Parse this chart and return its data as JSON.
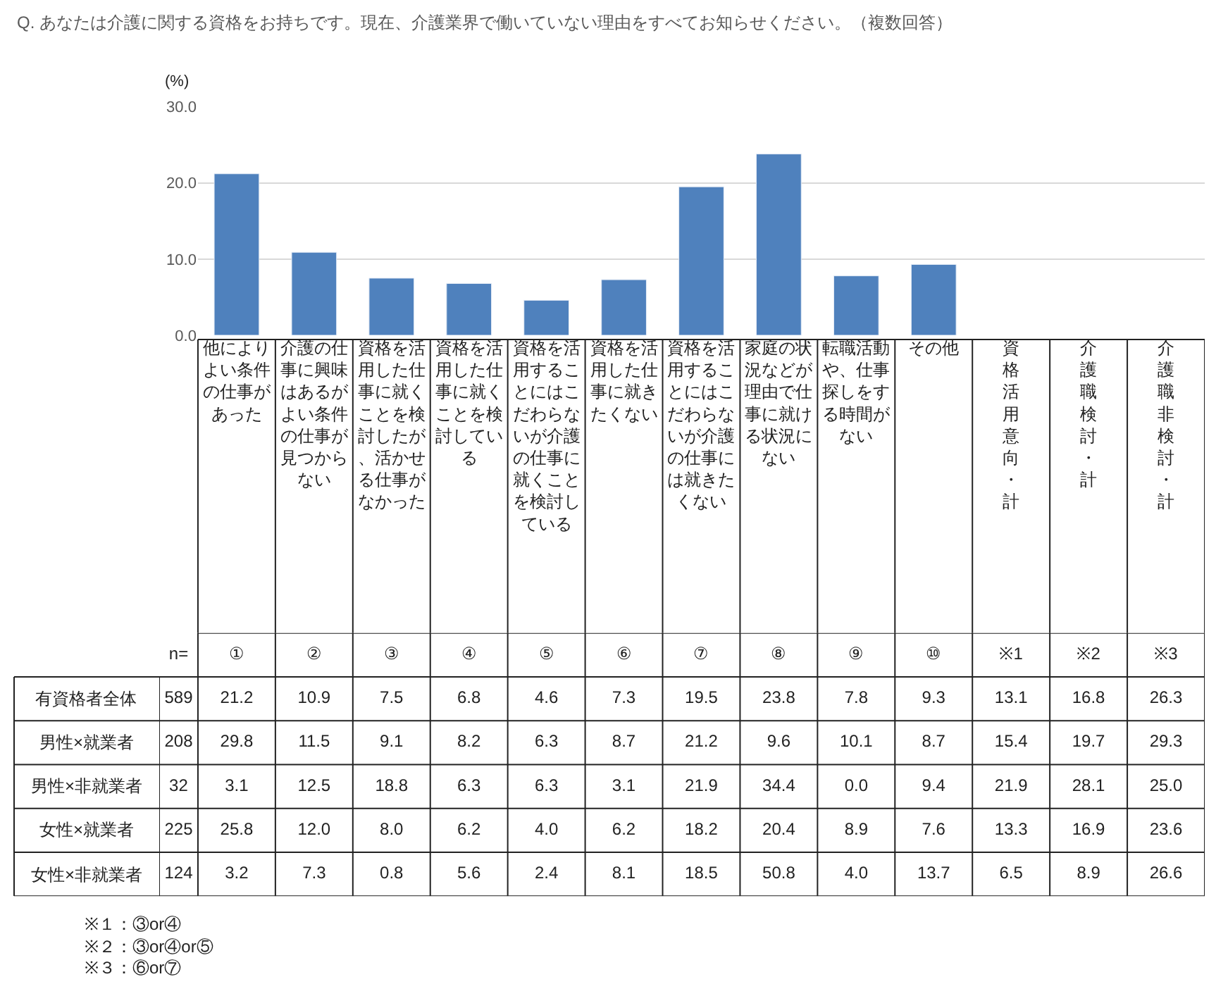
{
  "chart_data": [
    {
      "type": "bar",
      "title": "Q. あなたは介護に関する資格をお持ちです。現在、介護業界で働いていない理由をすべてお知らせください。（複数回答）",
      "ylabel": "(%)",
      "categories": [
        "他によりよい条件の仕事があった",
        "介護の仕事に興味はあるがよい条件の仕事が見つからない",
        "資格を活用した仕事に就くことを検討したが、活かせる仕事がなかった",
        "資格を活用した仕事に就くことを検討している",
        "資格を活用することにはこだわらないが介護の仕事に就くことを検討している",
        "資格を活用した仕事に就きたくない",
        "資格を活用することにはこだわらないが介護の仕事には就きたくない",
        "家庭の状況などが理由で仕事に就ける状況にない",
        "転職活動や、仕事探しをする時間がない",
        "その他",
        "資格活用意向・計",
        "介護職検討・計",
        "介護職非検討・計"
      ],
      "values": [
        21.2,
        10.9,
        7.5,
        6.8,
        4.6,
        7.3,
        19.5,
        23.8,
        7.8,
        9.3,
        null,
        null,
        null
      ],
      "color": "#4f81bd",
      "ylim": [
        0,
        30
      ],
      "yticks": [
        {
          "value": 0,
          "label": "0.0"
        },
        {
          "value": 10,
          "label": "10.0"
        },
        {
          "value": 20,
          "label": "20.0"
        },
        {
          "value": 30,
          "label": "30.0"
        }
      ],
      "grid": "y"
    },
    {
      "type": "heatmap",
      "categories": [
        "n=",
        "①",
        "②",
        "③",
        "④",
        "⑤",
        "⑥",
        "⑦",
        "⑧",
        "⑨",
        "⑩",
        "※1",
        "※2",
        "※3"
      ],
      "y_categories": [
        "有資格者全体",
        "男性×就業者",
        "男性×非就業者",
        "女性×就業者",
        "女性×非就業者"
      ],
      "cells": [
        [
          589,
          21.2,
          10.9,
          7.5,
          6.8,
          4.6,
          7.3,
          19.5,
          23.8,
          7.8,
          9.3,
          13.1,
          16.8,
          26.3
        ],
        [
          208,
          29.8,
          11.5,
          9.1,
          8.2,
          6.3,
          8.7,
          21.2,
          9.6,
          10.1,
          8.7,
          15.4,
          19.7,
          29.3
        ],
        [
          32,
          3.1,
          12.5,
          18.8,
          6.3,
          6.3,
          3.1,
          21.9,
          34.4,
          0.0,
          9.4,
          21.9,
          28.1,
          25.0
        ],
        [
          225,
          25.8,
          12.0,
          8.0,
          6.2,
          4.0,
          6.2,
          18.2,
          20.4,
          8.9,
          7.6,
          13.3,
          16.9,
          23.6
        ],
        [
          124,
          3.2,
          7.3,
          0.8,
          5.6,
          2.4,
          8.1,
          18.5,
          50.8,
          4.0,
          13.7,
          6.5,
          8.9,
          26.6
        ]
      ],
      "cell_labels": [
        [
          "589",
          "21.2",
          "10.9",
          "7.5",
          "6.8",
          "4.6",
          "7.3",
          "19.5",
          "23.8",
          "7.8",
          "9.3",
          "13.1",
          "16.8",
          "26.3"
        ],
        [
          "208",
          "29.8",
          "11.5",
          "9.1",
          "8.2",
          "6.3",
          "8.7",
          "21.2",
          "9.6",
          "10.1",
          "8.7",
          "15.4",
          "19.7",
          "29.3"
        ],
        [
          "32",
          "3.1",
          "12.5",
          "18.8",
          "6.3",
          "6.3",
          "3.1",
          "21.9",
          "34.4",
          "0.0",
          "9.4",
          "21.9",
          "28.1",
          "25.0"
        ],
        [
          "225",
          "25.8",
          "12.0",
          "8.0",
          "6.2",
          "4.0",
          "6.2",
          "18.2",
          "20.4",
          "8.9",
          "7.6",
          "13.3",
          "16.9",
          "23.6"
        ],
        [
          "124",
          "3.2",
          "7.3",
          "0.8",
          "5.6",
          "2.4",
          "8.1",
          "18.5",
          "50.8",
          "4.0",
          "13.7",
          "6.5",
          "8.9",
          "26.6"
        ]
      ],
      "annotations": [
        "※１：③or④",
        "※２：③or④or⑤",
        "※３：⑥or⑦"
      ]
    }
  ]
}
